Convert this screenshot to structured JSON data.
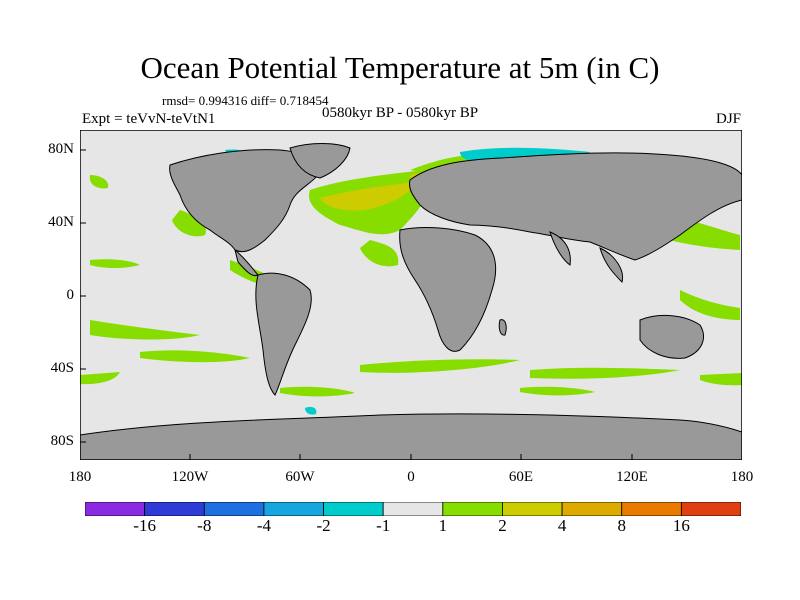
{
  "title": "Ocean Potential Temperature at 5m (in C)",
  "stats": "rmsd= 0.994316 diff= 0.718454",
  "experiment": "Expt = teVvN-teVtN1",
  "period": "0580kyr BP - 0580kyr BP",
  "season": "DJF",
  "map": {
    "lat_labels": [
      "80N",
      "40N",
      "0",
      "40S",
      "80S"
    ],
    "lon_labels": [
      "180",
      "120W",
      "60W",
      "0",
      "60E",
      "120E",
      "180"
    ],
    "colors": {
      "background_neutral": "#e6e6e6",
      "land": "#999999",
      "positive_1_2": "#88dd00",
      "positive_2_4": "#cccc00",
      "negative_2_1": "#00cccc",
      "negative_4_2": "#1e90ff"
    }
  },
  "colorbar": {
    "labels": [
      "-16",
      "-8",
      "-4",
      "-2",
      "-1",
      "1",
      "2",
      "4",
      "8",
      "16"
    ],
    "colors": [
      "#8a2be2",
      "#2f3bd6",
      "#1e6fe0",
      "#17a6e0",
      "#00cccc",
      "#e6e6e6",
      "#88dd00",
      "#cccc00",
      "#ddaa00",
      "#e87a00",
      "#e04010"
    ]
  }
}
